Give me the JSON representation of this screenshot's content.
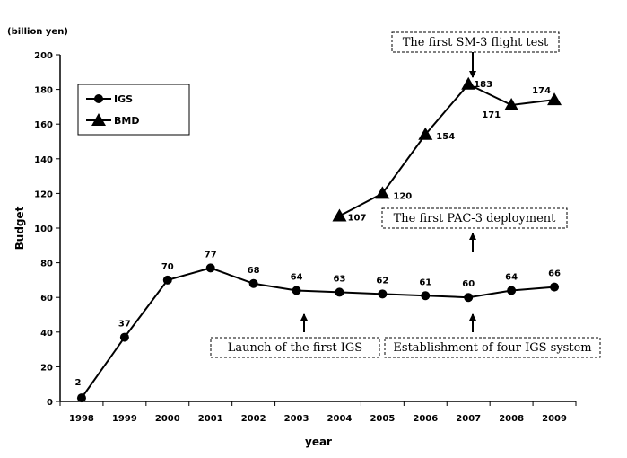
{
  "chart_data": {
    "type": "line",
    "unit_label": "(billion yen)",
    "xlabel": "year",
    "ylabel": "Budget",
    "categories": [
      "1998",
      "1999",
      "2000",
      "2001",
      "2002",
      "2003",
      "2004",
      "2005",
      "2006",
      "2007",
      "2008",
      "2009"
    ],
    "ylim": [
      0,
      200
    ],
    "yticks": [
      0,
      20,
      40,
      60,
      80,
      100,
      120,
      140,
      160,
      180,
      200
    ],
    "grid": false,
    "legend_position": "top-left",
    "series": [
      {
        "name": "IGS",
        "marker": "circle",
        "values": [
          2,
          37,
          70,
          77,
          68,
          64,
          63,
          62,
          61,
          60,
          64,
          66
        ]
      },
      {
        "name": "BMD",
        "marker": "triangle",
        "values": [
          null,
          null,
          null,
          null,
          null,
          null,
          107,
          120,
          154,
          183,
          171,
          174
        ]
      }
    ],
    "annotations": [
      {
        "text": "The first SM-3 flight test",
        "year": "2007"
      },
      {
        "text": "The first PAC-3 deployment",
        "year": "2007"
      },
      {
        "text": "Launch of the first IGS",
        "year": "2003"
      },
      {
        "text": "Establishment of four IGS system",
        "year": "2007"
      }
    ]
  },
  "colors": {
    "line": "#000000",
    "background": "#ffffff"
  }
}
